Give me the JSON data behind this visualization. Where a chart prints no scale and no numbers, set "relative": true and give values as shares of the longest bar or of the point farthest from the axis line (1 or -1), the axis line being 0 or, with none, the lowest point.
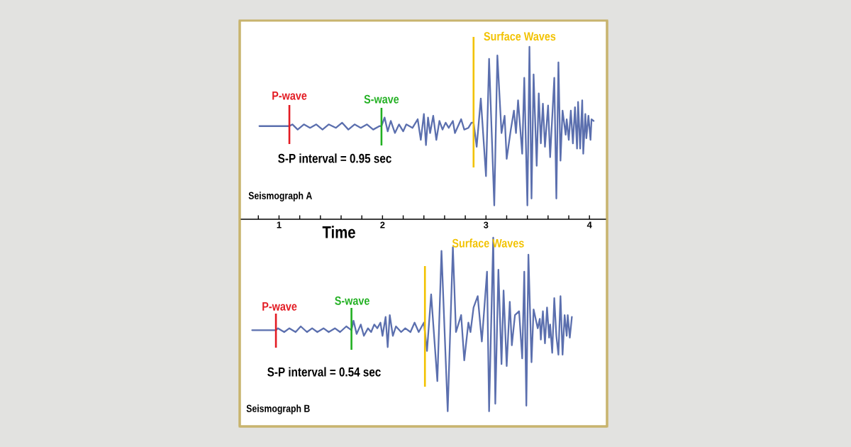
{
  "chart_data": [
    {
      "type": "line",
      "xlabel": "Time",
      "relative": true,
      "xlim": [
        0.62,
        4.17
      ],
      "xticks": [
        {
          "value": 0.8,
          "label": null
        },
        1,
        {
          "value": 1.2,
          "label": null
        },
        {
          "value": 1.4,
          "label": null
        },
        {
          "value": 1.6,
          "label": null
        },
        {
          "value": 1.8,
          "label": null
        },
        2,
        {
          "value": 2.2,
          "label": null
        },
        {
          "value": 2.4,
          "label": null
        },
        {
          "value": 2.6,
          "label": null
        },
        {
          "value": 2.8,
          "label": null
        },
        3,
        {
          "value": 3.2,
          "label": null
        },
        {
          "value": 3.4,
          "label": null
        },
        {
          "value": 3.6,
          "label": null
        },
        {
          "value": 3.8,
          "label": null
        },
        4
      ],
      "color": "#5b6fae",
      "x": [
        0.81,
        1.1,
        1.13,
        1.18,
        1.24,
        1.3,
        1.36,
        1.42,
        1.48,
        1.55,
        1.61,
        1.67,
        1.73,
        1.79,
        1.85,
        1.91,
        1.97,
        1.99,
        2.02,
        2.05,
        2.08,
        2.12,
        2.16,
        2.2,
        2.23,
        2.29,
        2.34,
        2.37,
        2.4,
        2.42,
        2.44,
        2.46,
        2.49,
        2.52,
        2.55,
        2.58,
        2.61,
        2.64,
        2.68,
        2.7,
        2.76,
        2.79,
        2.83,
        2.86,
        2.88,
        2.91,
        2.95,
        3.0,
        3.03,
        3.08,
        3.11,
        3.15,
        3.18,
        3.2,
        3.24,
        3.27,
        3.29,
        3.31,
        3.35,
        3.37,
        3.4,
        3.42,
        3.44,
        3.46,
        3.49,
        3.51,
        3.53,
        3.55,
        3.57,
        3.6,
        3.62,
        3.66,
        3.68,
        3.7,
        3.72,
        3.74,
        3.77,
        3.78,
        3.8,
        3.82,
        3.84,
        3.86,
        3.88,
        3.89,
        3.91,
        3.93,
        3.94,
        3.96,
        3.97,
        3.99,
        4.01,
        4.02,
        4.04
      ],
      "values": [
        0.54,
        0.54,
        0.55,
        0.52,
        0.55,
        0.53,
        0.55,
        0.52,
        0.55,
        0.53,
        0.56,
        0.52,
        0.55,
        0.53,
        0.55,
        0.52,
        0.54,
        0.54,
        0.59,
        0.51,
        0.57,
        0.5,
        0.55,
        0.51,
        0.55,
        0.53,
        0.58,
        0.46,
        0.61,
        0.43,
        0.59,
        0.5,
        0.6,
        0.46,
        0.57,
        0.52,
        0.56,
        0.53,
        0.57,
        0.5,
        0.58,
        0.52,
        0.53,
        0.56,
        0.56,
        0.42,
        0.7,
        0.25,
        0.93,
        0.08,
        0.95,
        0.5,
        0.6,
        0.35,
        0.52,
        0.63,
        0.5,
        0.69,
        0.38,
        0.82,
        0.08,
        1.0,
        0.12,
        0.84,
        0.31,
        0.73,
        0.44,
        0.67,
        0.42,
        0.66,
        0.36,
        0.82,
        0.12,
        0.91,
        0.34,
        0.63,
        0.49,
        0.58,
        0.46,
        0.63,
        0.44,
        0.65,
        0.41,
        0.68,
        0.41,
        0.69,
        0.38,
        0.61,
        0.47,
        0.6,
        0.46,
        0.58,
        0.57
      ],
      "ref_lines": [
        {
          "axis": "x",
          "value": 1.1,
          "label": "P-wave",
          "color": "#e31b23"
        },
        {
          "axis": "x",
          "value": 1.99,
          "label": "S-wave",
          "color": "#22b022"
        },
        {
          "axis": "x",
          "value": 2.88,
          "label": "Surface Waves",
          "color": "#f2c200"
        }
      ],
      "annotations": [
        "S-P interval = 0.95 sec",
        "Seismograph A"
      ]
    },
    {
      "type": "line",
      "relative": true,
      "xlim": [
        0.62,
        4.17
      ],
      "tick_labels": false,
      "color": "#5b6fae",
      "x": [
        0.74,
        0.97,
        0.99,
        1.05,
        1.1,
        1.16,
        1.21,
        1.27,
        1.32,
        1.37,
        1.43,
        1.48,
        1.54,
        1.59,
        1.65,
        1.7,
        1.72,
        1.75,
        1.79,
        1.82,
        1.86,
        1.89,
        1.92,
        1.95,
        1.98,
        2.0,
        2.03,
        2.05,
        2.07,
        2.1,
        2.13,
        2.18,
        2.22,
        2.27,
        2.31,
        2.35,
        2.38,
        2.4,
        2.43,
        2.47,
        2.53,
        2.57,
        2.63,
        2.68,
        2.71,
        2.76,
        2.79,
        2.83,
        2.85,
        2.88,
        2.92,
        2.96,
        3.01,
        3.03,
        3.07,
        3.09,
        3.12,
        3.15,
        3.17,
        3.2,
        3.23,
        3.25,
        3.28,
        3.32,
        3.35,
        3.37,
        3.39,
        3.41,
        3.44,
        3.46,
        3.5,
        3.52,
        3.53,
        3.55,
        3.57,
        3.59,
        3.61,
        3.62,
        3.64,
        3.66,
        3.68,
        3.7,
        3.72,
        3.74,
        3.76,
        3.78,
        3.79,
        3.81,
        3.83
      ],
      "values": [
        0.51,
        0.51,
        0.52,
        0.5,
        0.52,
        0.5,
        0.53,
        0.5,
        0.52,
        0.5,
        0.52,
        0.5,
        0.52,
        0.5,
        0.53,
        0.51,
        0.56,
        0.49,
        0.54,
        0.48,
        0.52,
        0.5,
        0.54,
        0.52,
        0.55,
        0.48,
        0.58,
        0.42,
        0.59,
        0.48,
        0.53,
        0.5,
        0.52,
        0.5,
        0.55,
        0.5,
        0.53,
        0.55,
        0.4,
        0.7,
        0.24,
        0.93,
        0.08,
        0.95,
        0.5,
        0.59,
        0.35,
        0.55,
        0.5,
        0.63,
        0.69,
        0.45,
        0.82,
        0.08,
        1.0,
        0.12,
        0.83,
        0.33,
        0.72,
        0.32,
        0.66,
        0.43,
        0.59,
        0.61,
        0.36,
        0.82,
        0.11,
        0.91,
        0.34,
        0.62,
        0.52,
        0.57,
        0.46,
        0.61,
        0.44,
        0.63,
        0.47,
        0.54,
        0.39,
        0.68,
        0.48,
        0.38,
        0.69,
        0.38,
        0.59,
        0.48,
        0.59,
        0.47,
        0.58
      ],
      "ref_lines": [
        {
          "axis": "x",
          "value": 0.97,
          "label": "P-wave",
          "color": "#e31b23"
        },
        {
          "axis": "x",
          "value": 1.7,
          "label": "S-wave",
          "color": "#22b022"
        },
        {
          "axis": "x",
          "value": 2.41,
          "label": "Surface Waves",
          "color": "#f2c200"
        }
      ],
      "annotations": [
        "S-P interval = 0.54 sec",
        "Seismograph B"
      ]
    }
  ]
}
